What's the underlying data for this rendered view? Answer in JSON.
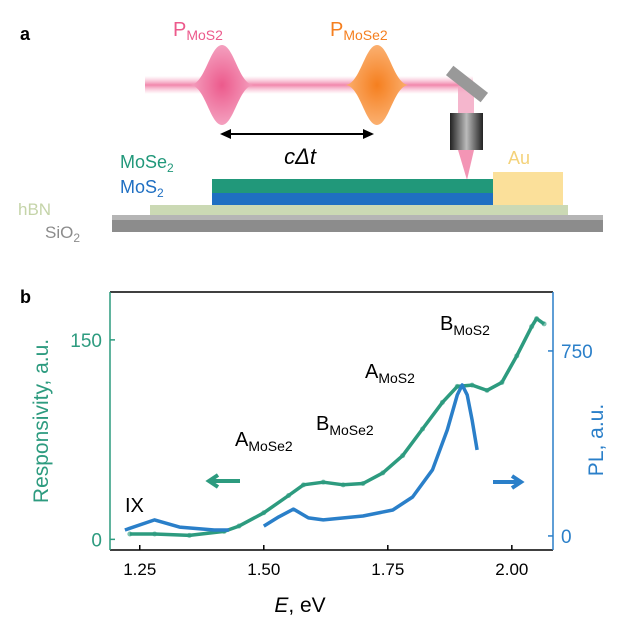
{
  "panel_a": {
    "label": "a",
    "pulse_1": {
      "text": "P",
      "subscript": "MoS2"
    },
    "pulse_2": {
      "text": "P",
      "subscript": "MoSe2"
    },
    "delay": "cΔt",
    "layer_mose2": {
      "text": "MoSe",
      "subscript": "2"
    },
    "layer_mos2": {
      "text": "MoS",
      "subscript": "2"
    },
    "hbn": "hBN",
    "sio2": {
      "text": "SiO",
      "subscript": "2"
    },
    "au": "Au"
  },
  "chart_data": {
    "type": "line",
    "panel_label": "b",
    "xlabel": {
      "text": "E",
      "unit": ", eV"
    },
    "ylabel": "Responsivity, a.u.",
    "y2label": "PL, a.u.",
    "xlim": [
      1.19,
      2.083
    ],
    "xticks": [
      1.25,
      {
        "value": 1.5,
        "label": "1.50"
      },
      1.75,
      {
        "value": 2,
        "label": "2.00"
      }
    ],
    "ylim": [
      -8,
      186
    ],
    "yticks": [
      0,
      150
    ],
    "y2lim": [
      -57,
      989
    ],
    "y2ticks": [
      0,
      750
    ],
    "series": [
      {
        "color": "#2d9b7f",
        "markers": true,
        "x": [
          1.23,
          1.28,
          1.35,
          1.42,
          1.45,
          1.5,
          1.55,
          1.58,
          1.62,
          1.66,
          1.7,
          1.74,
          1.78,
          1.82,
          1.86,
          1.89,
          1.92,
          1.95,
          1.98,
          2.01,
          2.04,
          2.05,
          2.065
        ],
        "values": [
          4,
          4,
          3,
          6,
          10,
          20,
          33,
          41,
          43,
          41,
          42,
          50,
          63,
          83,
          103,
          115,
          116,
          112,
          118,
          138,
          160,
          166,
          162
        ]
      },
      {
        "color": "#2a7fc9",
        "axis": "y2",
        "markers": false,
        "x": [
          1.22,
          1.28,
          1.33,
          1.4,
          1.43,
          1.46,
          1.5,
          1.53,
          1.56,
          1.59,
          1.62,
          1.7,
          1.76,
          1.8,
          1.84,
          1.87,
          1.89,
          1.9,
          1.91,
          1.92,
          1.93
        ],
        "values": [
          24,
          65,
          36,
          24,
          24,
          null,
          40,
          77,
          109,
          73,
          65,
          81,
          105,
          158,
          268,
          430,
          572,
          612,
          572,
          470,
          349
        ]
      }
    ],
    "annotations": [
      {
        "text": "IX"
      },
      {
        "text": "A",
        "subscript": "MoSe2"
      },
      {
        "text": "B",
        "subscript": "MoSe2"
      },
      {
        "text": "A",
        "subscript": "MoS2"
      },
      {
        "text": "B",
        "subscript": "MoS2"
      }
    ]
  }
}
